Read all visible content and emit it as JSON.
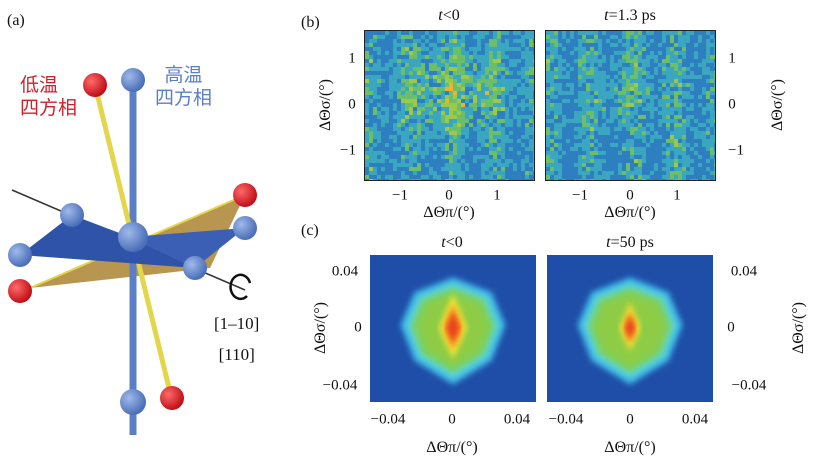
{
  "panel_a": {
    "label": "(a)",
    "low_temp_label": [
      "低温",
      "四方相"
    ],
    "high_temp_label": [
      "高温",
      "四方相"
    ],
    "direction_labels": [
      "[1–10]",
      "[110]"
    ],
    "colors": {
      "low_temp": "#d0212a",
      "high_temp": "#5b7fc4",
      "plane": "#b08b3c",
      "octahedron": "#2f53a8",
      "apical_bond_low": "#e3d64a"
    }
  },
  "panel_b": {
    "label": "(b)",
    "maps": [
      {
        "title_var": "t",
        "title_rest": "<0"
      },
      {
        "title_var": "t",
        "title_rest": "=1.3 ps"
      }
    ],
    "x_ticks": [
      "−1",
      "0",
      "1"
    ],
    "y_ticks": [
      "1",
      "0",
      "−1"
    ],
    "xlabel": "ΔΘπ/(°)",
    "ylabel": "ΔΘσ/(°)",
    "colormap": "jet"
  },
  "panel_c": {
    "label": "(c)",
    "maps": [
      {
        "title_var": "t",
        "title_rest": "<0"
      },
      {
        "title_var": "t",
        "title_rest": "=50 ps"
      }
    ],
    "x_ticks": [
      "−0.04",
      "0",
      "0.04"
    ],
    "y_ticks": [
      "0.04",
      "0",
      "−0.04"
    ],
    "xlabel": "ΔΘπ/(°)",
    "ylabel": "ΔΘσ/(°)",
    "colormap": "jet"
  }
}
